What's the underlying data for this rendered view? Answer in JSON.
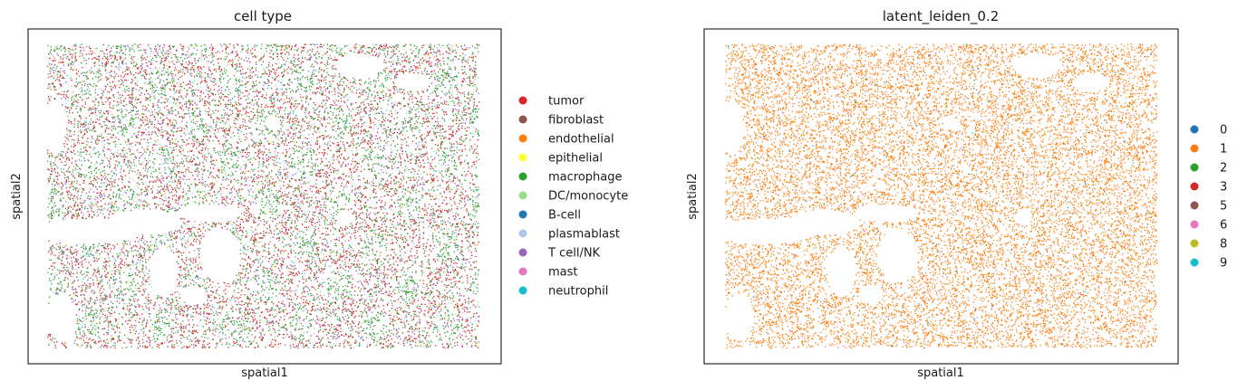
{
  "chart_data": [
    {
      "type": "scatter",
      "title": "cell type",
      "xlabel": "spatial1",
      "ylabel": "spatial2",
      "legend_placement": "right",
      "grid": false,
      "series": [
        {
          "name": "tumor",
          "color": "#d62728",
          "share": 0.46
        },
        {
          "name": "fibroblast",
          "color": "#8c564b",
          "share": 0.02
        },
        {
          "name": "endothelial",
          "color": "#ff7f0e",
          "share": 0.01
        },
        {
          "name": "epithelial",
          "color": "#ffff33",
          "share": 0.005
        },
        {
          "name": "macrophage",
          "color": "#2ca02c",
          "share": 0.22
        },
        {
          "name": "DC/monocyte",
          "color": "#98df8a",
          "share": 0.05
        },
        {
          "name": "B-cell",
          "color": "#1f77b4",
          "share": 0.01
        },
        {
          "name": "plasmablast",
          "color": "#aec7e8",
          "share": 0.08
        },
        {
          "name": "T cell/NK",
          "color": "#9467bd",
          "share": 0.13
        },
        {
          "name": "mast",
          "color": "#e377c2",
          "share": 0.005
        },
        {
          "name": "neutrophil",
          "color": "#17becf",
          "share": 0.01
        }
      ]
    },
    {
      "type": "scatter",
      "title": "latent_leiden_0.2",
      "xlabel": "spatial1",
      "ylabel": "spatial2",
      "legend_placement": "right",
      "grid": false,
      "series": [
        {
          "name": "0",
          "color": "#1f77b4",
          "share": 0.003
        },
        {
          "name": "1",
          "color": "#ff7f0e",
          "share": 0.975
        },
        {
          "name": "2",
          "color": "#2ca02c",
          "share": 0.003
        },
        {
          "name": "3",
          "color": "#d62728",
          "share": 0.002
        },
        {
          "name": "5",
          "color": "#8c564b",
          "share": 0.002
        },
        {
          "name": "6",
          "color": "#e377c2",
          "share": 0.012
        },
        {
          "name": "8",
          "color": "#bcbd22",
          "share": 0.001
        },
        {
          "name": "9",
          "color": "#17becf",
          "share": 0.002
        }
      ]
    }
  ]
}
